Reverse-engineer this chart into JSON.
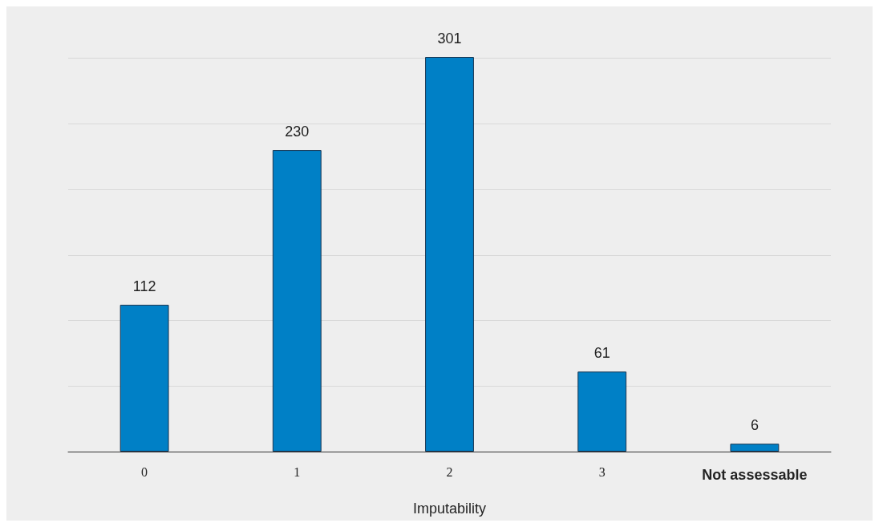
{
  "chart_data": {
    "type": "bar",
    "xlabel": "Imputability",
    "categories": [
      "0",
      "1",
      "2",
      "3",
      "Not assessable"
    ],
    "values": [
      112,
      230,
      301,
      61,
      6
    ],
    "color": "#0080c6",
    "data_labels": true,
    "grid": "y",
    "tick_labels": "x",
    "ylim": [
      0,
      301
    ],
    "yticks": [
      {
        "value": 0,
        "label": null
      },
      {
        "value": 50,
        "label": null
      },
      {
        "value": 100,
        "label": null
      },
      {
        "value": 150,
        "label": null
      },
      {
        "value": 200,
        "label": null
      },
      {
        "value": 250,
        "label": null
      },
      {
        "value": 300,
        "label": null
      }
    ]
  }
}
